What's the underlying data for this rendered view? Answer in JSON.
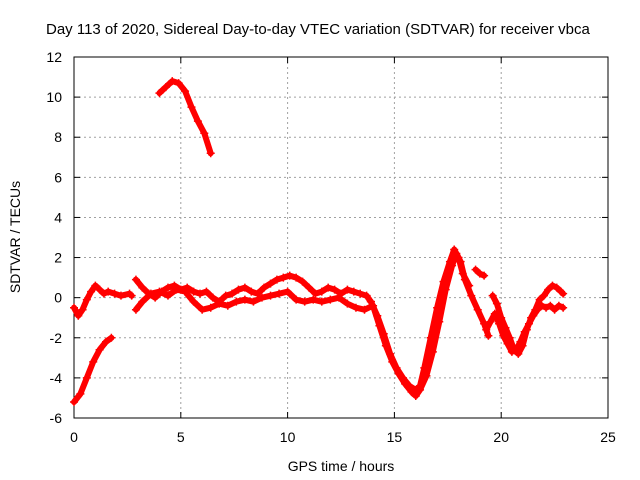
{
  "chart_data": {
    "type": "scatter",
    "title": "Day 113 of 2020, Sidereal Day-to-day VTEC variation (SDTVAR) for receiver vbca",
    "xlabel": "GPS time / hours",
    "ylabel": "SDTVAR / TECUs",
    "xlim": [
      0,
      25
    ],
    "ylim": [
      -6,
      12
    ],
    "xticks": [
      0,
      5,
      10,
      15,
      20,
      25
    ],
    "yticks": [
      -6,
      -4,
      -2,
      0,
      2,
      4,
      6,
      8,
      10,
      12
    ],
    "grid": true,
    "marker": "+",
    "color": "#ff0000",
    "series": [
      {
        "name": "s1",
        "points": [
          [
            0,
            -0.5
          ],
          [
            0.2,
            -0.9
          ],
          [
            0.4,
            -0.6
          ],
          [
            0.6,
            -0.1
          ],
          [
            0.8,
            0.3
          ],
          [
            1.0,
            0.6
          ],
          [
            1.2,
            0.4
          ],
          [
            1.4,
            0.2
          ],
          [
            1.6,
            0.3
          ],
          [
            1.9,
            0.2
          ],
          [
            2.2,
            0.1
          ],
          [
            2.6,
            0.2
          ],
          [
            2.7,
            0.1
          ]
        ]
      },
      {
        "name": "s2",
        "points": [
          [
            0,
            -5.2
          ],
          [
            0.3,
            -4.8
          ],
          [
            0.6,
            -4.0
          ],
          [
            0.9,
            -3.2
          ],
          [
            1.2,
            -2.6
          ],
          [
            1.5,
            -2.2
          ],
          [
            1.75,
            -2.0
          ]
        ]
      },
      {
        "name": "s3",
        "points": [
          [
            4.0,
            10.2
          ],
          [
            4.3,
            10.5
          ],
          [
            4.6,
            10.8
          ],
          [
            4.9,
            10.7
          ],
          [
            5.2,
            10.3
          ],
          [
            5.5,
            9.5
          ],
          [
            5.8,
            8.8
          ],
          [
            6.1,
            8.2
          ],
          [
            6.4,
            7.2
          ]
        ]
      },
      {
        "name": "s4",
        "points": [
          [
            2.9,
            0.9
          ],
          [
            3.2,
            0.5
          ],
          [
            3.5,
            0.2
          ],
          [
            3.8,
            0.0
          ],
          [
            4.1,
            0.3
          ],
          [
            4.4,
            0.5
          ],
          [
            4.7,
            0.6
          ],
          [
            5.0,
            0.4
          ],
          [
            5.3,
            0.5
          ],
          [
            5.6,
            0.3
          ],
          [
            5.9,
            0.2
          ],
          [
            6.2,
            0.3
          ],
          [
            6.5,
            0.0
          ],
          [
            6.8,
            -0.2
          ],
          [
            7.1,
            0.1
          ],
          [
            7.4,
            0.2
          ],
          [
            7.7,
            0.4
          ],
          [
            8.0,
            0.5
          ],
          [
            8.3,
            0.3
          ],
          [
            8.6,
            0.2
          ],
          [
            8.9,
            0.5
          ],
          [
            9.2,
            0.7
          ],
          [
            9.5,
            0.9
          ],
          [
            9.8,
            1.0
          ],
          [
            10.1,
            1.1
          ],
          [
            10.4,
            1.0
          ],
          [
            10.7,
            0.8
          ],
          [
            11.0,
            0.5
          ],
          [
            11.3,
            0.2
          ],
          [
            11.6,
            0.3
          ],
          [
            11.9,
            0.5
          ],
          [
            12.2,
            0.4
          ],
          [
            12.5,
            0.2
          ],
          [
            12.8,
            0.4
          ],
          [
            13.1,
            0.3
          ],
          [
            13.4,
            0.2
          ],
          [
            13.7,
            0.1
          ],
          [
            13.9,
            -0.2
          ]
        ]
      },
      {
        "name": "s5",
        "points": [
          [
            2.9,
            -0.6
          ],
          [
            3.2,
            -0.2
          ],
          [
            3.6,
            0.2
          ],
          [
            4.0,
            0.3
          ],
          [
            4.4,
            0.1
          ],
          [
            4.8,
            0.4
          ],
          [
            5.2,
            0.3
          ],
          [
            5.6,
            -0.2
          ],
          [
            6.0,
            -0.6
          ],
          [
            6.4,
            -0.5
          ],
          [
            6.8,
            -0.3
          ],
          [
            7.2,
            -0.4
          ],
          [
            7.6,
            -0.2
          ],
          [
            8.0,
            -0.1
          ],
          [
            8.4,
            -0.2
          ],
          [
            8.8,
            0.0
          ],
          [
            9.2,
            0.1
          ],
          [
            9.6,
            0.2
          ],
          [
            10.0,
            0.3
          ],
          [
            10.4,
            -0.1
          ],
          [
            10.8,
            -0.2
          ],
          [
            11.2,
            -0.1
          ],
          [
            11.6,
            -0.2
          ],
          [
            12.0,
            -0.1
          ],
          [
            12.4,
            0.0
          ],
          [
            12.8,
            -0.3
          ],
          [
            13.2,
            -0.5
          ],
          [
            13.6,
            -0.6
          ],
          [
            14.0,
            -0.4
          ]
        ]
      },
      {
        "name": "s6",
        "points": [
          [
            13.9,
            -0.2
          ],
          [
            14.2,
            -0.9
          ],
          [
            14.5,
            -1.8
          ],
          [
            14.8,
            -2.8
          ],
          [
            15.1,
            -3.5
          ],
          [
            15.4,
            -4.0
          ],
          [
            15.7,
            -4.4
          ],
          [
            16.0,
            -4.6
          ],
          [
            16.2,
            -4.4
          ],
          [
            16.4,
            -3.5
          ],
          [
            16.7,
            -2.0
          ],
          [
            17.0,
            -0.5
          ],
          [
            17.3,
            0.8
          ],
          [
            17.6,
            1.8
          ],
          [
            17.8,
            2.4
          ],
          [
            18.0,
            2.0
          ],
          [
            18.2,
            1.2
          ],
          [
            18.5,
            0.6
          ]
        ]
      },
      {
        "name": "s7",
        "points": [
          [
            14.0,
            -0.4
          ],
          [
            14.3,
            -1.4
          ],
          [
            14.6,
            -2.4
          ],
          [
            14.9,
            -3.2
          ],
          [
            15.2,
            -3.8
          ],
          [
            15.5,
            -4.3
          ],
          [
            15.8,
            -4.7
          ],
          [
            16.0,
            -4.9
          ],
          [
            16.2,
            -4.6
          ],
          [
            16.5,
            -3.9
          ],
          [
            16.8,
            -2.7
          ],
          [
            17.1,
            -1.2
          ],
          [
            17.4,
            0.4
          ],
          [
            17.7,
            1.6
          ],
          [
            17.9,
            2.2
          ],
          [
            18.1,
            1.8
          ],
          [
            18.3,
            0.9
          ],
          [
            18.6,
            0.1
          ],
          [
            18.9,
            -0.6
          ],
          [
            19.2,
            -1.3
          ],
          [
            19.4,
            -1.9
          ]
        ]
      },
      {
        "name": "s8",
        "points": [
          [
            18.8,
            1.4
          ],
          [
            19.0,
            1.2
          ],
          [
            19.2,
            1.1
          ]
        ]
      },
      {
        "name": "s9",
        "points": [
          [
            19.3,
            -1.6
          ],
          [
            19.5,
            -1.2
          ],
          [
            19.7,
            -0.8
          ],
          [
            19.9,
            -1.3
          ],
          [
            20.1,
            -1.9
          ],
          [
            20.3,
            -2.3
          ],
          [
            20.5,
            -2.7
          ],
          [
            20.7,
            -2.6
          ],
          [
            20.9,
            -2.2
          ],
          [
            21.1,
            -1.7
          ],
          [
            21.3,
            -1.3
          ],
          [
            21.5,
            -0.9
          ],
          [
            21.7,
            -0.6
          ],
          [
            21.9,
            -0.4
          ],
          [
            22.1,
            -0.5
          ],
          [
            22.3,
            -0.4
          ],
          [
            22.5,
            -0.6
          ],
          [
            22.7,
            -0.4
          ],
          [
            22.9,
            -0.5
          ]
        ]
      },
      {
        "name": "s10",
        "points": [
          [
            19.6,
            0.1
          ],
          [
            19.8,
            -0.3
          ],
          [
            20.0,
            -1.0
          ],
          [
            20.2,
            -1.5
          ],
          [
            20.4,
            -2.0
          ],
          [
            20.6,
            -2.6
          ],
          [
            20.8,
            -2.8
          ],
          [
            21.0,
            -2.4
          ],
          [
            21.2,
            -1.6
          ],
          [
            21.4,
            -1.0
          ],
          [
            21.6,
            -0.6
          ],
          [
            21.8,
            -0.1
          ],
          [
            22.0,
            0.1
          ],
          [
            22.2,
            0.4
          ],
          [
            22.4,
            0.6
          ],
          [
            22.6,
            0.5
          ],
          [
            22.8,
            0.3
          ],
          [
            22.9,
            0.2
          ]
        ]
      }
    ]
  }
}
